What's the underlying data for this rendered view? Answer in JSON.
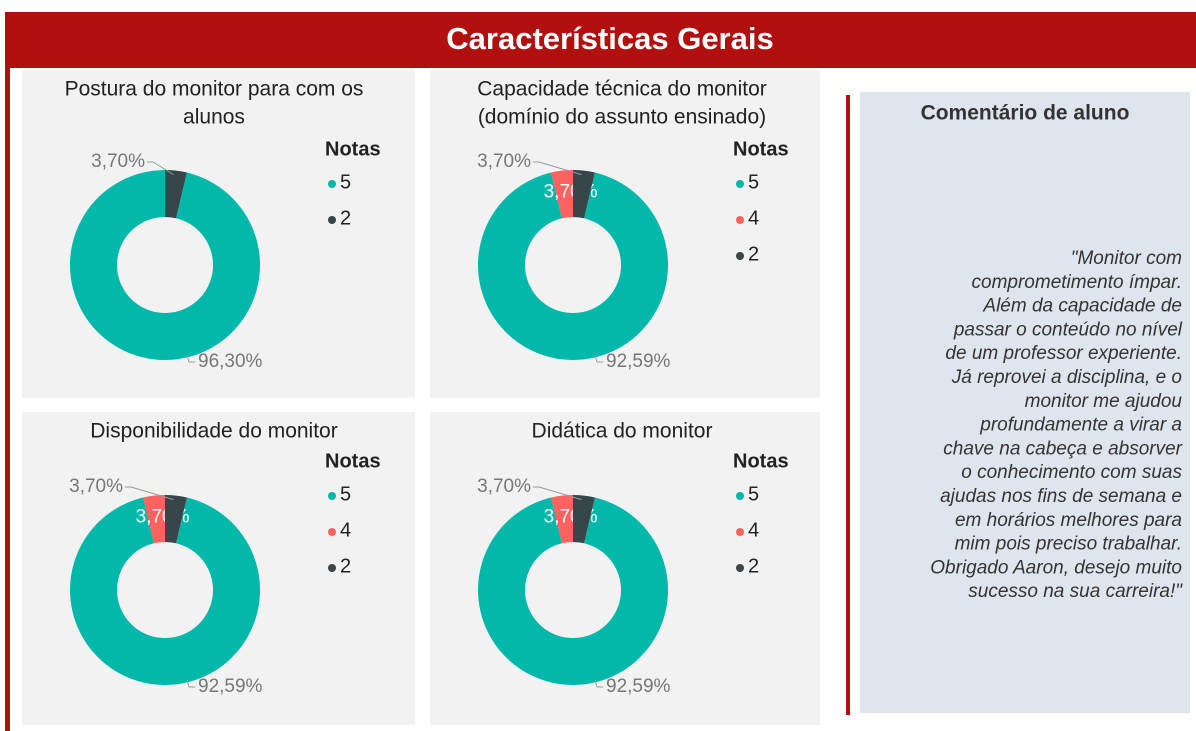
{
  "header": {
    "title": "Características Gerais"
  },
  "comment": {
    "title": "Comentário de aluno",
    "lines": [
      "\"Monitor com",
      "comprometimento ímpar.",
      "Além da capacidade de",
      "passar o conteúdo no nível",
      "de um professor experiente.",
      "Já reprovei a disciplina, e o",
      "monitor me ajudou",
      "profundamente a virar a",
      "chave na cabeça e absorver",
      "o conhecimento com suas",
      "ajudas nos fins de semana e",
      "em horários melhores para",
      "mim pois preciso trabalhar.",
      "Obrigado Aaron, desejo muito",
      "sucesso na sua carreira!\""
    ]
  },
  "chart_data": [
    {
      "type": "donut",
      "title": [
        "Postura do monitor para com os",
        "alunos"
      ],
      "legend_title": "Notas",
      "categories": [
        "5",
        "2"
      ],
      "values": [
        96.3,
        3.7
      ],
      "value_labels": [
        "96,30%",
        "3,70%"
      ],
      "colors": [
        "#01b8aa",
        "#374649"
      ]
    },
    {
      "type": "donut",
      "title": [
        "Capacidade técnica do monitor",
        "(domínio do assunto ensinado)"
      ],
      "legend_title": "Notas",
      "categories": [
        "5",
        "4",
        "2"
      ],
      "values": [
        92.59,
        3.7,
        3.7
      ],
      "value_labels": [
        "92,59%",
        "3,70%",
        "3,70%"
      ],
      "colors": [
        "#01b8aa",
        "#fd625e",
        "#374649"
      ]
    },
    {
      "type": "donut",
      "title": [
        "Disponibilidade do monitor"
      ],
      "legend_title": "Notas",
      "categories": [
        "5",
        "4",
        "2"
      ],
      "values": [
        92.59,
        3.7,
        3.7
      ],
      "value_labels": [
        "92,59%",
        "3,70%",
        "3,70%"
      ],
      "colors": [
        "#01b8aa",
        "#fd625e",
        "#374649"
      ]
    },
    {
      "type": "donut",
      "title": [
        "Didática do monitor"
      ],
      "legend_title": "Notas",
      "categories": [
        "5",
        "4",
        "2"
      ],
      "values": [
        92.59,
        3.7,
        3.7
      ],
      "value_labels": [
        "92,59%",
        "3,70%",
        "3,70%"
      ],
      "colors": [
        "#01b8aa",
        "#fd625e",
        "#374649"
      ]
    }
  ]
}
